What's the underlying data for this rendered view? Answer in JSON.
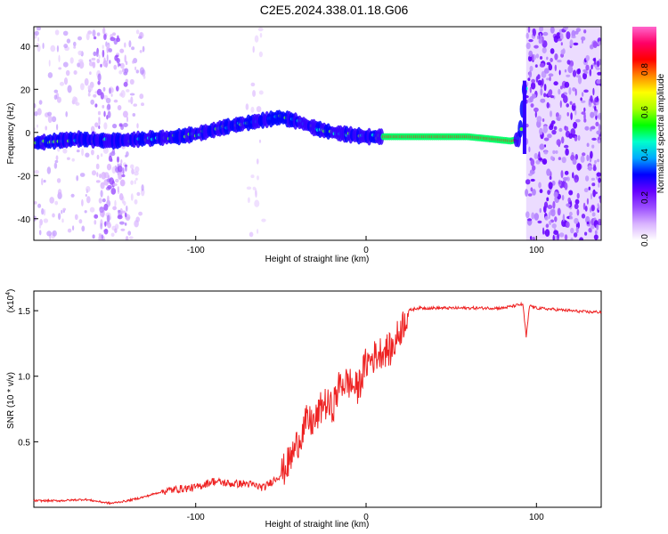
{
  "title": "C2E5.2024.338.01.18.G06",
  "chart_data": [
    {
      "type": "heatmap",
      "xlabel": "Height of straight line (km)",
      "ylabel": "Frequency (Hz)",
      "xlim": [
        -195,
        138
      ],
      "ylim": [
        -50,
        49
      ],
      "xticks": [
        -100,
        0,
        100
      ],
      "yticks": [
        -40,
        -20,
        0,
        20,
        40
      ],
      "colorbar": {
        "label": "Normalized spectral amplitude",
        "ticks": [
          "0.0",
          "0.2",
          "0.4",
          "0.6",
          "0.8"
        ],
        "range": [
          0,
          1
        ],
        "colors": [
          "#ffffff",
          "#d9b3ff",
          "#9b4dff",
          "#6600ff",
          "#0000ff",
          "#00aaff",
          "#00ffcc",
          "#00ff00",
          "#aaff00",
          "#ffff00",
          "#ff8800",
          "#ff0000",
          "#ff0066",
          "#ff66cc"
        ]
      },
      "ridge": {
        "x": [
          -195,
          -170,
          -150,
          -130,
          -110,
          -95,
          -80,
          -65,
          -50,
          -40,
          -30,
          -20,
          -10,
          0,
          20,
          60,
          85,
          90,
          93
        ],
        "y": [
          -5,
          -3,
          -4,
          -3,
          -2,
          0,
          3,
          5,
          7,
          5,
          2,
          0,
          -1,
          -2,
          -2,
          -2,
          -4,
          -3,
          20
        ]
      }
    },
    {
      "type": "line",
      "xlabel": "Height of straight line (km)",
      "ylabel": "SNR (10 * v/v)",
      "scale_label": "(x10",
      "scale_exp": "4",
      "xlim": [
        -195,
        138
      ],
      "ylim": [
        0,
        16500
      ],
      "xticks": [
        -100,
        0,
        100
      ],
      "yticks": [
        0.5,
        1.0,
        1.5
      ],
      "ytick_labels": [
        "0.5",
        "1.0",
        "1.5"
      ],
      "series": [
        {
          "color": "#ee2222",
          "x": [
            -195,
            -180,
            -165,
            -150,
            -140,
            -130,
            -120,
            -110,
            -100,
            -90,
            -80,
            -70,
            -60,
            -50,
            -45,
            -40,
            -35,
            -30,
            -25,
            -20,
            -15,
            -10,
            -5,
            0,
            5,
            10,
            15,
            20,
            25,
            30,
            35,
            40,
            50,
            60,
            70,
            80,
            88,
            92,
            94,
            96,
            100,
            110,
            120,
            130,
            138
          ],
          "y": [
            500,
            500,
            600,
            300,
            500,
            800,
            1200,
            1400,
            1500,
            2000,
            1800,
            1800,
            1500,
            2500,
            3500,
            5000,
            6500,
            6500,
            8000,
            7500,
            9500,
            9500,
            9000,
            11000,
            11500,
            12000,
            12000,
            13500,
            15000,
            15200,
            15200,
            15200,
            15200,
            15200,
            15200,
            15200,
            15400,
            15500,
            13000,
            15400,
            15200,
            15100,
            15000,
            14900,
            14900
          ]
        }
      ]
    }
  ]
}
